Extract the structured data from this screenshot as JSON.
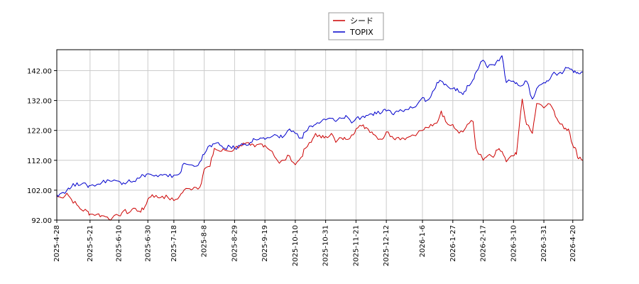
{
  "chart_data": {
    "type": "line",
    "title": "",
    "xlabel": "",
    "ylabel": "",
    "ylim": [
      92.0,
      149.0
    ],
    "yticks": [
      "92.00",
      "102.00",
      "112.00",
      "122.00",
      "132.00",
      "142.00"
    ],
    "ytick_values": [
      92,
      102,
      112,
      122,
      132,
      142
    ],
    "xlim": [
      "2025-04-28",
      "2026-04-27"
    ],
    "xticks": [
      "2025-4-28",
      "2025-5-21",
      "2025-6-10",
      "2025-6-30",
      "2025-7-18",
      "2025-8-8",
      "2025-8-29",
      "2025-9-19",
      "2025-10-10",
      "2025-10-31",
      "2025-11-21",
      "2025-12-12",
      "2026-1-6",
      "2026-1-27",
      "2026-2-17",
      "2026-3-10",
      "2026-3-31",
      "2026-4-20"
    ],
    "xtick_dates": [
      "2025-04-28",
      "2025-05-21",
      "2025-06-10",
      "2025-06-30",
      "2025-07-18",
      "2025-08-08",
      "2025-08-29",
      "2025-09-19",
      "2025-10-10",
      "2025-10-31",
      "2025-11-21",
      "2025-12-12",
      "2026-01-06",
      "2026-01-27",
      "2026-02-17",
      "2026-03-10",
      "2026-03-31",
      "2026-04-20"
    ],
    "grid": true,
    "legend_position": "top-center",
    "series": [
      {
        "name": "シード",
        "color": "#cc0000",
        "points": [
          [
            "2025-04-28",
            100.0
          ],
          [
            "2025-05-01",
            99.5
          ],
          [
            "2025-05-05",
            101.0
          ],
          [
            "2025-05-08",
            99.0
          ],
          [
            "2025-05-12",
            97.0
          ],
          [
            "2025-05-15",
            95.5
          ],
          [
            "2025-05-19",
            95.0
          ],
          [
            "2025-05-21",
            94.0
          ],
          [
            "2025-05-26",
            94.0
          ],
          [
            "2025-05-29",
            93.5
          ],
          [
            "2025-06-02",
            93.0
          ],
          [
            "2025-06-05",
            92.5
          ],
          [
            "2025-06-10",
            93.5
          ],
          [
            "2025-06-13",
            95.0
          ],
          [
            "2025-06-17",
            94.5
          ],
          [
            "2025-06-20",
            96.0
          ],
          [
            "2025-06-24",
            95.0
          ],
          [
            "2025-06-27",
            95.5
          ],
          [
            "2025-06-30",
            99.0
          ],
          [
            "2025-07-03",
            100.5
          ],
          [
            "2025-07-07",
            99.5
          ],
          [
            "2025-07-10",
            100.0
          ],
          [
            "2025-07-14",
            99.5
          ],
          [
            "2025-07-18",
            98.5
          ],
          [
            "2025-07-22",
            100.0
          ],
          [
            "2025-07-25",
            102.0
          ],
          [
            "2025-07-29",
            102.5
          ],
          [
            "2025-08-01",
            103.0
          ],
          [
            "2025-08-05",
            103.0
          ],
          [
            "2025-08-08",
            109.0
          ],
          [
            "2025-08-12",
            110.0
          ],
          [
            "2025-08-15",
            116.0
          ],
          [
            "2025-08-19",
            115.0
          ],
          [
            "2025-08-22",
            115.5
          ],
          [
            "2025-08-26",
            115.0
          ],
          [
            "2025-08-29",
            116.0
          ],
          [
            "2025-09-02",
            117.0
          ],
          [
            "2025-09-05",
            117.5
          ],
          [
            "2025-09-09",
            117.0
          ],
          [
            "2025-09-12",
            116.5
          ],
          [
            "2025-09-16",
            117.5
          ],
          [
            "2025-09-19",
            117.0
          ],
          [
            "2025-09-24",
            115.0
          ],
          [
            "2025-09-29",
            111.0
          ],
          [
            "2025-10-02",
            112.0
          ],
          [
            "2025-10-06",
            113.5
          ],
          [
            "2025-10-10",
            110.5
          ],
          [
            "2025-10-14",
            113.0
          ],
          [
            "2025-10-17",
            116.0
          ],
          [
            "2025-10-21",
            118.0
          ],
          [
            "2025-10-24",
            121.0
          ],
          [
            "2025-10-28",
            119.5
          ],
          [
            "2025-10-31",
            120.0
          ],
          [
            "2025-11-04",
            121.0
          ],
          [
            "2025-11-07",
            118.0
          ],
          [
            "2025-11-11",
            119.5
          ],
          [
            "2025-11-14",
            119.0
          ],
          [
            "2025-11-18",
            120.5
          ],
          [
            "2025-11-21",
            122.5
          ],
          [
            "2025-11-25",
            123.5
          ],
          [
            "2025-11-28",
            123.0
          ],
          [
            "2025-12-02",
            121.5
          ],
          [
            "2025-12-05",
            120.0
          ],
          [
            "2025-12-09",
            119.0
          ],
          [
            "2025-12-12",
            121.5
          ],
          [
            "2025-12-16",
            120.0
          ],
          [
            "2025-12-19",
            119.5
          ],
          [
            "2025-12-23",
            119.5
          ],
          [
            "2025-12-26",
            119.5
          ],
          [
            "2025-12-30",
            120.5
          ],
          [
            "2026-01-06",
            122.0
          ],
          [
            "2026-01-09",
            123.0
          ],
          [
            "2026-01-13",
            123.5
          ],
          [
            "2026-01-16",
            124.5
          ],
          [
            "2026-01-19",
            128.5
          ],
          [
            "2026-01-22",
            125.0
          ],
          [
            "2026-01-27",
            124.0
          ],
          [
            "2026-01-30",
            122.0
          ],
          [
            "2026-02-03",
            121.5
          ],
          [
            "2026-02-06",
            124.0
          ],
          [
            "2026-02-10",
            125.0
          ],
          [
            "2026-02-12",
            116.0
          ],
          [
            "2026-02-17",
            112.0
          ],
          [
            "2026-02-20",
            113.5
          ],
          [
            "2026-02-24",
            113.0
          ],
          [
            "2026-02-27",
            115.5
          ],
          [
            "2026-03-02",
            115.0
          ],
          [
            "2026-03-05",
            111.5
          ],
          [
            "2026-03-10",
            113.5
          ],
          [
            "2026-03-12",
            114.0
          ],
          [
            "2026-03-16",
            132.5
          ],
          [
            "2026-03-19",
            124.0
          ],
          [
            "2026-03-23",
            121.0
          ],
          [
            "2026-03-26",
            131.0
          ],
          [
            "2026-03-31",
            129.5
          ],
          [
            "2026-04-03",
            131.0
          ],
          [
            "2026-04-07",
            128.5
          ],
          [
            "2026-04-10",
            125.0
          ],
          [
            "2026-04-14",
            122.5
          ],
          [
            "2026-04-17",
            122.5
          ],
          [
            "2026-04-20",
            117.0
          ],
          [
            "2026-04-22",
            116.0
          ],
          [
            "2026-04-24",
            112.5
          ],
          [
            "2026-04-27",
            112.0
          ]
        ]
      },
      {
        "name": "TOPIX",
        "color": "#0000cc",
        "points": [
          [
            "2025-04-28",
            100.5
          ],
          [
            "2025-05-01",
            101.0
          ],
          [
            "2025-05-05",
            102.0
          ],
          [
            "2025-05-08",
            103.0
          ],
          [
            "2025-05-12",
            104.5
          ],
          [
            "2025-05-15",
            104.0
          ],
          [
            "2025-05-19",
            103.5
          ],
          [
            "2025-05-21",
            103.5
          ],
          [
            "2025-05-26",
            104.0
          ],
          [
            "2025-05-29",
            104.5
          ],
          [
            "2025-06-02",
            105.5
          ],
          [
            "2025-06-05",
            105.0
          ],
          [
            "2025-06-10",
            105.0
          ],
          [
            "2025-06-13",
            104.5
          ],
          [
            "2025-06-17",
            105.5
          ],
          [
            "2025-06-20",
            105.0
          ],
          [
            "2025-06-24",
            106.0
          ],
          [
            "2025-06-27",
            107.0
          ],
          [
            "2025-06-30",
            107.5
          ],
          [
            "2025-07-03",
            107.0
          ],
          [
            "2025-07-07",
            106.5
          ],
          [
            "2025-07-10",
            107.0
          ],
          [
            "2025-07-14",
            106.5
          ],
          [
            "2025-07-18",
            107.0
          ],
          [
            "2025-07-22",
            107.5
          ],
          [
            "2025-07-25",
            111.0
          ],
          [
            "2025-07-29",
            110.5
          ],
          [
            "2025-08-01",
            110.0
          ],
          [
            "2025-08-05",
            111.5
          ],
          [
            "2025-08-08",
            114.0
          ],
          [
            "2025-08-12",
            117.0
          ],
          [
            "2025-08-15",
            117.5
          ],
          [
            "2025-08-19",
            117.0
          ],
          [
            "2025-08-22",
            116.0
          ],
          [
            "2025-08-26",
            116.5
          ],
          [
            "2025-08-29",
            116.0
          ],
          [
            "2025-09-02",
            117.0
          ],
          [
            "2025-09-05",
            117.5
          ],
          [
            "2025-09-09",
            118.0
          ],
          [
            "2025-09-12",
            119.0
          ],
          [
            "2025-09-16",
            119.5
          ],
          [
            "2025-09-19",
            119.0
          ],
          [
            "2025-09-24",
            120.0
          ],
          [
            "2025-09-29",
            119.5
          ],
          [
            "2025-10-02",
            120.0
          ],
          [
            "2025-10-06",
            122.5
          ],
          [
            "2025-10-10",
            121.0
          ],
          [
            "2025-10-14",
            119.5
          ],
          [
            "2025-10-17",
            121.5
          ],
          [
            "2025-10-21",
            123.5
          ],
          [
            "2025-10-24",
            124.0
          ],
          [
            "2025-10-28",
            125.0
          ],
          [
            "2025-10-31",
            125.5
          ],
          [
            "2025-11-04",
            126.0
          ],
          [
            "2025-11-07",
            125.0
          ],
          [
            "2025-11-11",
            126.0
          ],
          [
            "2025-11-14",
            127.0
          ],
          [
            "2025-11-18",
            124.5
          ],
          [
            "2025-11-21",
            126.0
          ],
          [
            "2025-11-25",
            126.5
          ],
          [
            "2025-11-28",
            127.0
          ],
          [
            "2025-12-02",
            127.5
          ],
          [
            "2025-12-05",
            127.5
          ],
          [
            "2025-12-09",
            128.0
          ],
          [
            "2025-12-12",
            128.5
          ],
          [
            "2025-12-16",
            127.5
          ],
          [
            "2025-12-19",
            128.5
          ],
          [
            "2025-12-23",
            128.5
          ],
          [
            "2025-12-26",
            129.0
          ],
          [
            "2025-12-30",
            129.5
          ],
          [
            "2026-01-06",
            133.0
          ],
          [
            "2026-01-09",
            132.0
          ],
          [
            "2026-01-13",
            135.0
          ],
          [
            "2026-01-16",
            138.0
          ],
          [
            "2026-01-19",
            138.5
          ],
          [
            "2026-01-22",
            137.5
          ],
          [
            "2026-01-27",
            136.0
          ],
          [
            "2026-01-30",
            136.0
          ],
          [
            "2026-02-03",
            134.0
          ],
          [
            "2026-02-06",
            137.0
          ],
          [
            "2026-02-10",
            139.0
          ],
          [
            "2026-02-12",
            141.5
          ],
          [
            "2026-02-17",
            145.5
          ],
          [
            "2026-02-20",
            143.0
          ],
          [
            "2026-02-24",
            144.0
          ],
          [
            "2026-02-27",
            145.5
          ],
          [
            "2026-03-02",
            147.0
          ],
          [
            "2026-03-05",
            138.0
          ],
          [
            "2026-03-10",
            138.5
          ],
          [
            "2026-03-12",
            138.0
          ],
          [
            "2026-03-16",
            137.0
          ],
          [
            "2026-03-19",
            138.5
          ],
          [
            "2026-03-23",
            132.5
          ],
          [
            "2026-03-26",
            136.0
          ],
          [
            "2026-03-31",
            138.0
          ],
          [
            "2026-04-03",
            138.5
          ],
          [
            "2026-04-07",
            141.5
          ],
          [
            "2026-04-10",
            141.0
          ],
          [
            "2026-04-14",
            142.0
          ],
          [
            "2026-04-17",
            143.0
          ],
          [
            "2026-04-20",
            142.0
          ],
          [
            "2026-04-22",
            141.5
          ],
          [
            "2026-04-24",
            141.0
          ],
          [
            "2026-04-27",
            141.5
          ]
        ]
      }
    ]
  }
}
